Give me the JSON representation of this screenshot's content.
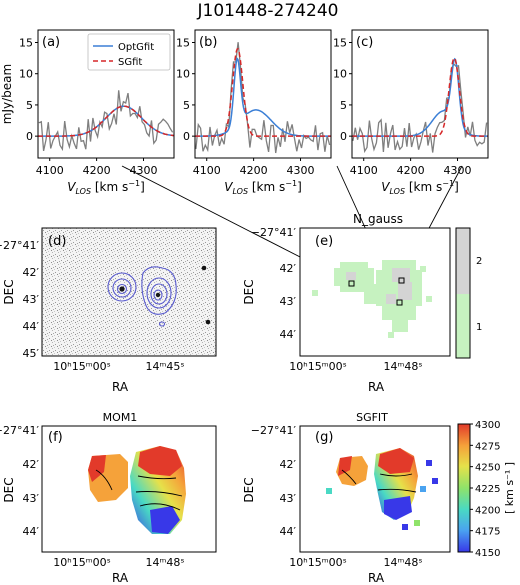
{
  "figure": {
    "title": "J101448-274240",
    "colors": {
      "opt": "#3b7fd6",
      "sg": "#d62728",
      "data": "#7f7f7f",
      "ngauss1": "#c6f2c0",
      "ngauss2": "#d4d4d4",
      "contour": "#5a5ccf",
      "velocity_cmap": [
        "#3838e8",
        "#4aa3f0",
        "#49d9c4",
        "#8fe36a",
        "#e6e14a",
        "#f5a23a",
        "#e23a2a"
      ]
    }
  },
  "chart_data": [
    {
      "panel": "(a)",
      "type": "line",
      "ylabel": "mJy/beam",
      "xlabel_base": "V",
      "xlabel_sub": "LOS",
      "xlabel_unit": "[km s",
      "xlabel_exp": "−1",
      "xlabel_close": "]",
      "xlim": [
        4075,
        4365
      ],
      "ylim": [
        -3.5,
        17
      ],
      "xticks": [
        4100,
        4200,
        4300
      ],
      "yticks": [
        0,
        5,
        10,
        15
      ],
      "legend": [
        "OptGfit",
        "SGfit"
      ],
      "series": [
        {
          "name": "OptGfit",
          "gaussians": [
            {
              "amp": 4.8,
              "mu": 4258,
              "sigma": 38
            }
          ]
        },
        {
          "name": "SGfit",
          "gaussians": [
            {
              "amp": 4.8,
              "mu": 4258,
              "sigma": 38
            }
          ]
        }
      ]
    },
    {
      "panel": "(b)",
      "type": "line",
      "xlim": [
        4075,
        4365
      ],
      "ylim": [
        -3.5,
        17
      ],
      "xticks": [
        4100,
        4200,
        4300
      ],
      "yticks": [
        0,
        5,
        10,
        15
      ],
      "series": [
        {
          "name": "OptGfit",
          "gaussians": [
            {
              "amp": 10.5,
              "mu": 4165,
              "sigma": 7
            },
            {
              "amp": 4.2,
              "mu": 4205,
              "sigma": 32
            }
          ]
        },
        {
          "name": "SGfit",
          "gaussians": [
            {
              "amp": 14.0,
              "mu": 4166,
              "sigma": 11
            }
          ]
        }
      ]
    },
    {
      "panel": "(c)",
      "type": "line",
      "xlim": [
        4075,
        4365
      ],
      "ylim": [
        -3.5,
        17
      ],
      "xticks": [
        4100,
        4200,
        4300
      ],
      "yticks": [
        0,
        5,
        10,
        15
      ],
      "series": [
        {
          "name": "OptGfit",
          "gaussians": [
            {
              "amp": 10.0,
              "mu": 4295,
              "sigma": 8
            },
            {
              "amp": 4.0,
              "mu": 4270,
              "sigma": 24
            }
          ]
        },
        {
          "name": "SGfit",
          "gaussians": [
            {
              "amp": 12.5,
              "mu": 4293,
              "sigma": 11
            }
          ]
        }
      ]
    }
  ],
  "maps": {
    "d": {
      "label": "(d)",
      "xticks": [
        "10ʰ15ᵐ00ˢ",
        "14ᵐ45ˢ"
      ],
      "yticks": [
        "−27°41′",
        "42′",
        "43′",
        "44′",
        "45′"
      ],
      "xlabel": "RA",
      "ylabel": "DEC"
    },
    "e": {
      "label": "(e)",
      "title": "N_gauss",
      "xticks": [
        "10ʰ15ᵐ00ˢ",
        "14ᵐ48ˢ"
      ],
      "yticks": [
        "−27°41′",
        "42′",
        "43′",
        "44′"
      ],
      "xlabel": "RA",
      "ylabel": "DEC",
      "cbar_ticks": [
        2,
        1
      ]
    },
    "f": {
      "label": "(f)",
      "title": "MOM1",
      "xticks": [
        "10ʰ15ᵐ00ˢ",
        "14ᵐ48ˢ"
      ],
      "yticks": [
        "−27°41′",
        "42′",
        "43′",
        "44′"
      ],
      "xlabel": "RA",
      "ylabel": "DEC"
    },
    "g": {
      "label": "(g)",
      "title": "SGFIT",
      "xticks": [
        "10ʰ15ᵐ00ˢ",
        "14ᵐ48ˢ"
      ],
      "yticks": [
        "−27°41′",
        "42′",
        "43′",
        "44′"
      ],
      "xlabel": "RA",
      "ylabel": "DEC",
      "cbar_ticks": [
        4300,
        4275,
        4250,
        4225,
        4200,
        4175,
        4150
      ],
      "cbar_label": "[ km s⁻¹ ]"
    }
  }
}
